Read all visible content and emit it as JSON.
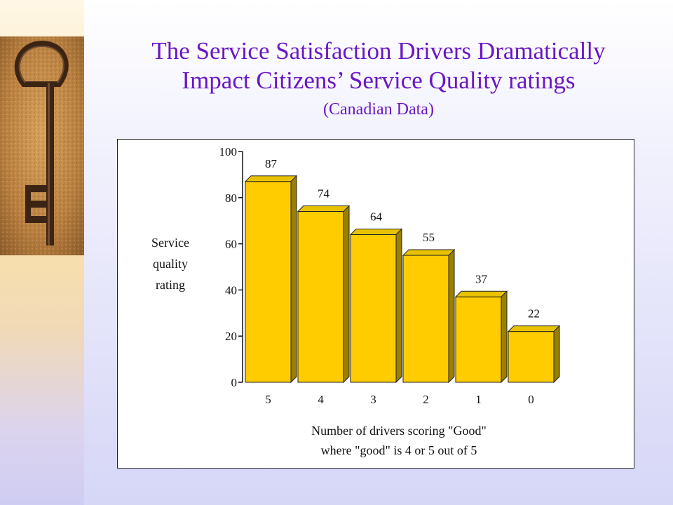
{
  "slide": {
    "title_line1": "The Service Satisfaction Drivers Dramatically",
    "title_line2": "Impact Citizens’ Service Quality ratings",
    "subtitle": "(Canadian Data)"
  },
  "colors": {
    "title": "#6a17c4",
    "bar_front": "#ffcc00",
    "bar_top": "#e8c200",
    "bar_side": "#9a8000"
  },
  "chart_data": {
    "type": "bar",
    "categories": [
      "5",
      "4",
      "3",
      "2",
      "1",
      "0"
    ],
    "values": [
      87,
      74,
      64,
      55,
      37,
      22
    ],
    "ylabel_lines": [
      "Service",
      "quality",
      "rating"
    ],
    "xlabel_lines": [
      "Number of drivers scoring \"Good\"",
      "where \"good\" is 4 or 5 out of 5"
    ],
    "ylim": [
      0,
      100
    ],
    "yticks": [
      0,
      20,
      40,
      60,
      80,
      100
    ],
    "data_labels": true,
    "grid": false,
    "style": "3d"
  }
}
